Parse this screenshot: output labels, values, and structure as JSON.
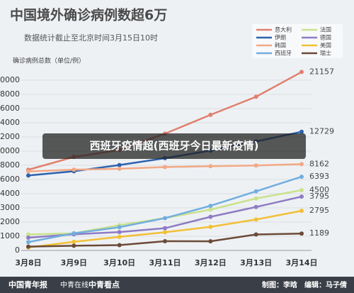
{
  "chart_data": {
    "type": "line",
    "title": "中国境外确诊病例数超6万",
    "subtitle": "数据统计截止至北京时间3月15日10时",
    "y_label": "确诊病例总数（单位/例）",
    "categories": [
      "3月8日",
      "3月9日",
      "3月10日",
      "3月11日",
      "3月12日",
      "3月13日",
      "3月14日"
    ],
    "series": [
      {
        "name": "意大利",
        "color": "#e0806f",
        "values": [
          7375,
          9172,
          10149,
          12462,
          15113,
          17660,
          21157
        ]
      },
      {
        "name": "法国",
        "color": "#c9e28c",
        "values": [
          1126,
          1209,
          1784,
          2281,
          2876,
          3661,
          4500
        ]
      },
      {
        "name": "伊朗",
        "color": "#2d62ad",
        "values": [
          6566,
          7161,
          8042,
          9000,
          10075,
          11364,
          12729
        ]
      },
      {
        "name": "德国",
        "color": "#8e7cc3",
        "values": [
          902,
          1139,
          1296,
          1567,
          2369,
          3062,
          3795
        ]
      },
      {
        "name": "韩国",
        "color": "#f2a985",
        "values": [
          7134,
          7382,
          7513,
          7755,
          7869,
          7979,
          8162
        ]
      },
      {
        "name": "美国",
        "color": "#f2c037",
        "values": [
          213,
          605,
          959,
          1281,
          1663,
          2179,
          2795
        ]
      },
      {
        "name": "西班牙",
        "color": "#72aee0",
        "values": [
          589,
          1204,
          1639,
          2277,
          3146,
          4334,
          6393
        ]
      },
      {
        "name": "瑞士",
        "color": "#6b4a38",
        "values": [
          268,
          332,
          374,
          652,
          645,
          1125,
          1189
        ]
      }
    ],
    "ylim": [
      0,
      22000
    ],
    "yticks": [
      0,
      1000,
      2000,
      3000,
      4000,
      6000,
      8000,
      10000,
      12000,
      14000,
      16000,
      18000,
      20000
    ],
    "grid": true
  },
  "banner": "西班牙疫情超(西班牙今日最新疫情)",
  "logos": [
    "中国青年报",
    "中青在线",
    "中青看点"
  ],
  "credit": "制图：李晗　编辑：马子倩"
}
